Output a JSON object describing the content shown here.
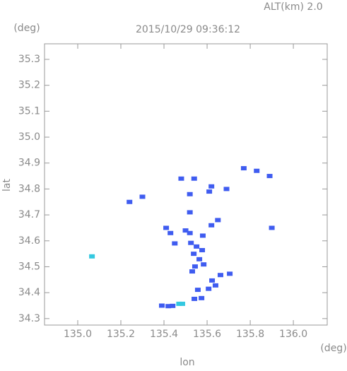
{
  "chart_data": {
    "type": "scatter",
    "title": "2015/10/29 09:36:12",
    "subtitle": "ALT(km) 2.0",
    "x_label": "lon",
    "y_label": "lat",
    "x_unit": "(deg)",
    "y_unit": "(deg)",
    "xlim": [
      134.846,
      136.157
    ],
    "ylim": [
      34.275,
      35.36
    ],
    "xticks": [
      {
        "value": 135,
        "label": "135.0"
      },
      135.2,
      135.4,
      135.6,
      135.8,
      {
        "value": 136,
        "label": "136.0"
      }
    ],
    "yticks": [
      34.3,
      34.4,
      34.5,
      34.6,
      34.7,
      34.8,
      34.9,
      {
        "value": 35,
        "label": "35.0"
      },
      35.1,
      35.2,
      35.3
    ],
    "series": [
      {
        "color": "#3f5cf0",
        "x": [
          135.24,
          135.3,
          135.48,
          135.54,
          135.52,
          135.52,
          135.61,
          135.62,
          135.69,
          135.77,
          135.83,
          135.89,
          135.9,
          135.65,
          135.62,
          135.41,
          135.43,
          135.5,
          135.52,
          135.45,
          135.58,
          135.525,
          135.551,
          135.577,
          135.538,
          135.564,
          135.544,
          135.584,
          135.531,
          135.662,
          135.705,
          135.623,
          135.639,
          135.607,
          135.557,
          135.541,
          135.574,
          135.39,
          135.42,
          135.44
        ],
        "y": [
          34.75,
          34.77,
          34.84,
          34.84,
          34.78,
          34.71,
          34.79,
          34.81,
          34.8,
          34.88,
          34.87,
          34.85,
          34.65,
          34.68,
          34.66,
          34.65,
          34.63,
          34.64,
          34.63,
          34.59,
          34.62,
          34.592,
          34.578,
          34.564,
          34.55,
          34.529,
          34.501,
          34.509,
          34.482,
          34.468,
          34.473,
          34.447,
          34.428,
          34.415,
          34.411,
          34.376,
          34.379,
          34.35,
          34.348,
          34.349
        ]
      },
      {
        "color": "#33c8e0",
        "x": [
          135.066,
          135.47,
          135.485
        ],
        "y": [
          34.54,
          34.357,
          34.357
        ]
      }
    ]
  }
}
